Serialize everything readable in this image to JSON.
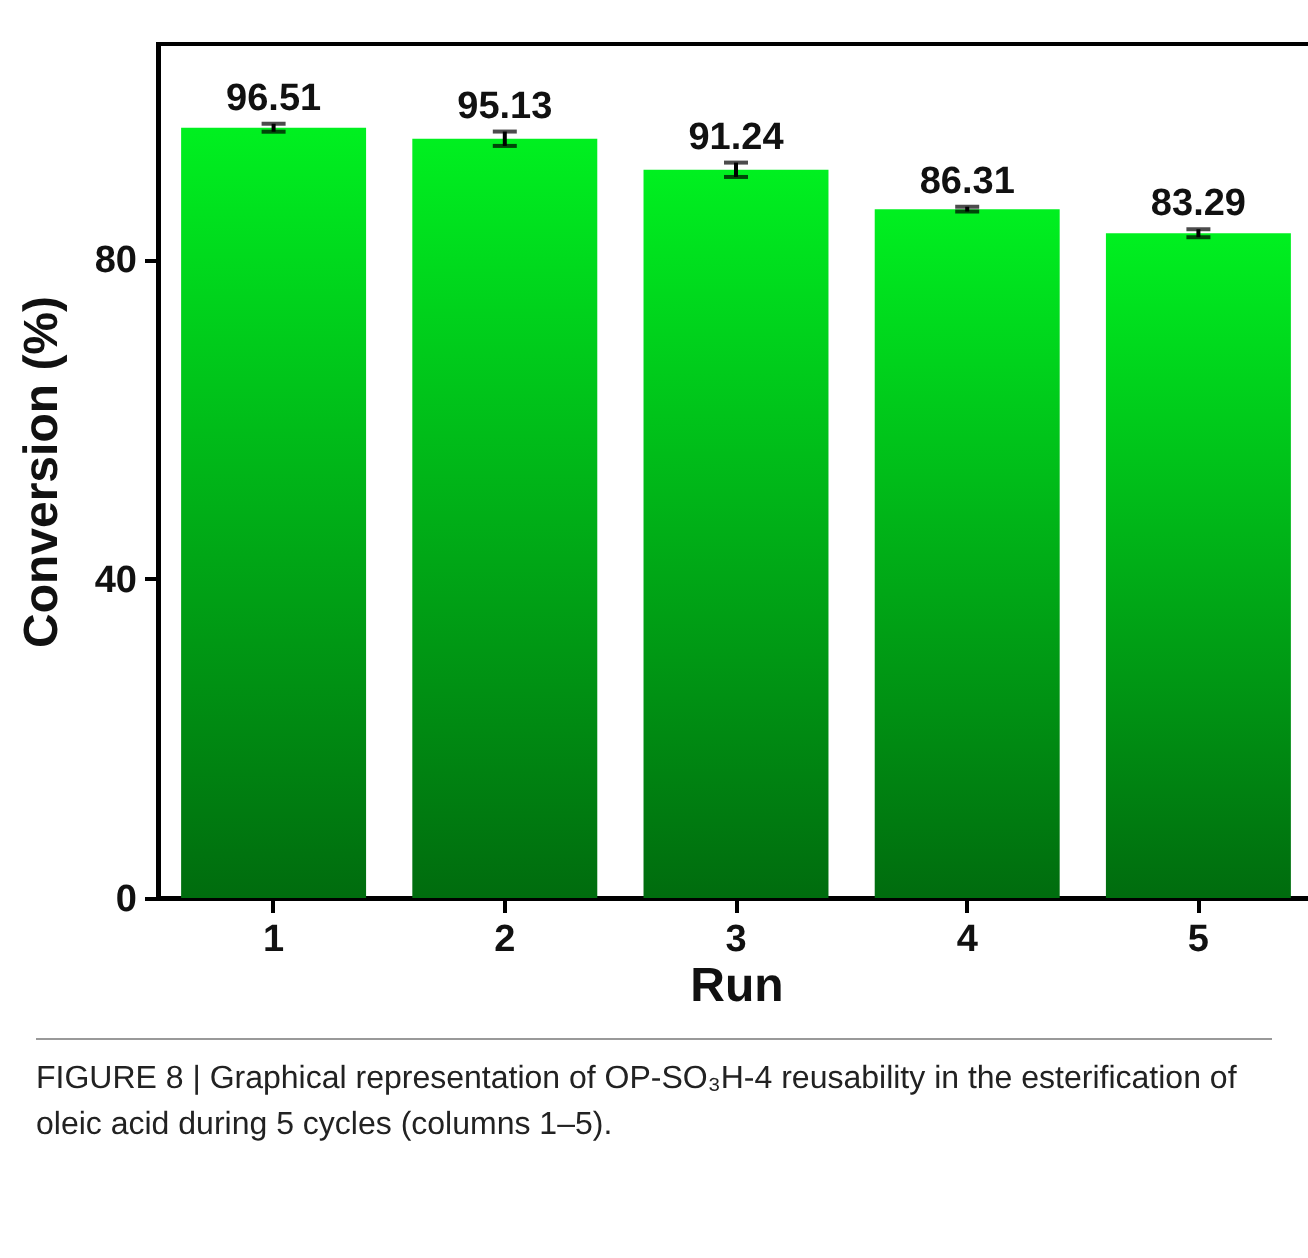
{
  "chart_data": {
    "type": "bar",
    "xlabel": "Run",
    "ylabel": "Conversion (%)",
    "categories": [
      "1",
      "2",
      "3",
      "4",
      "5"
    ],
    "values": [
      96.51,
      95.13,
      91.24,
      86.31,
      83.29
    ],
    "errors": [
      0.5,
      0.9,
      0.9,
      0.3,
      0.5
    ],
    "color": "#00f020",
    "data_labels": true,
    "ylim": [
      0,
      107
    ],
    "yticks": [
      0,
      40,
      80
    ],
    "grid": false,
    "annotations": [
      "FIGURE 8 | Graphical representation of OP-SO₃H-4 reusability in the esterification of oleic acid during 5 cycles (columns 1–5)."
    ]
  }
}
